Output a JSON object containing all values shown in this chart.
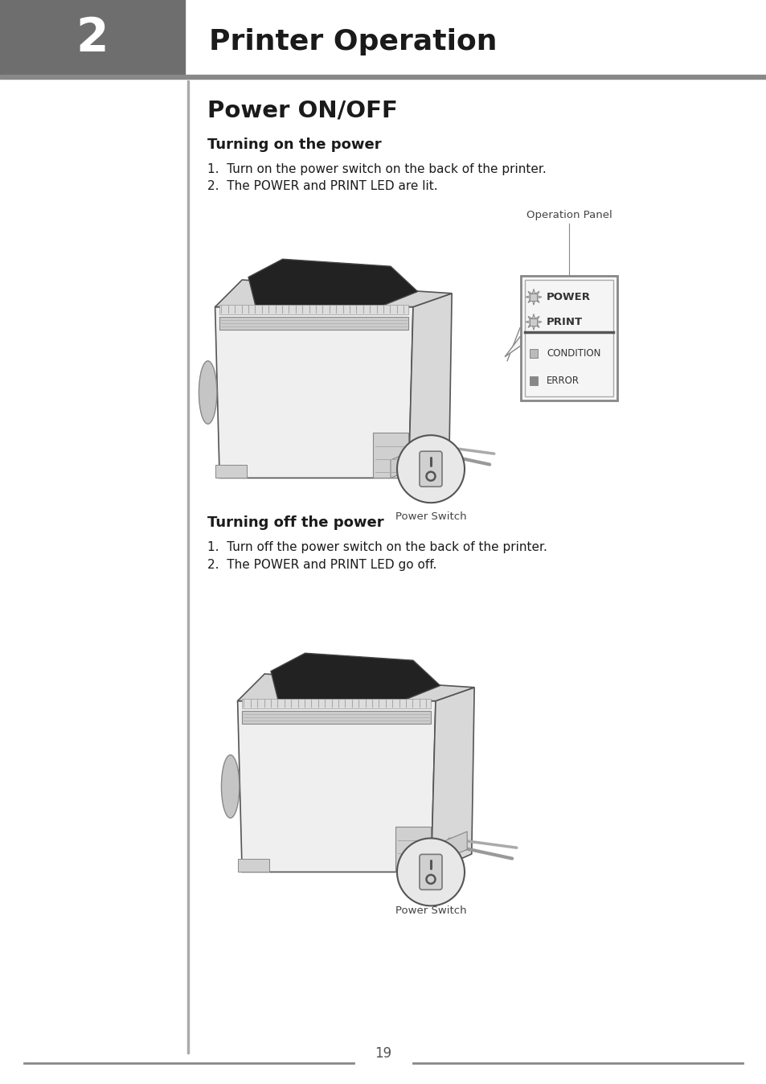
{
  "page_bg": "#ffffff",
  "header_bg": "#707070",
  "header_number": "2",
  "header_title": "Printer Operation",
  "section_title": "Power ON/OFF",
  "subsection1_title": "Turning on the power",
  "subsection1_steps": [
    "1.  Turn on the power switch on the back of the printer.",
    "2.  The POWER and PRINT LED are lit."
  ],
  "subsection2_title": "Turning off the power",
  "subsection2_steps": [
    "1.  Turn off the power switch on the back of the printer.",
    "2.  The POWER and PRINT LED go off."
  ],
  "op_panel_label": "Operation Panel",
  "power_switch_label": "Power Switch",
  "panel_labels": [
    "POWER",
    "PRINT",
    "CONDITION",
    "ERROR"
  ],
  "footer_page": "19"
}
